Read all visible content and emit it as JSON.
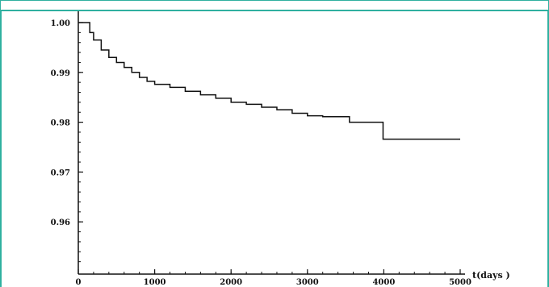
{
  "chart_data": {
    "type": "line",
    "title": "",
    "xlabel": "t(days )",
    "ylabel": "",
    "xlim": [
      0,
      5000
    ],
    "ylim": [
      0.95,
      1.0
    ],
    "x_ticks": [
      0,
      1000,
      2000,
      3000,
      4000,
      5000
    ],
    "y_ticks": [
      0.96,
      0.97,
      0.98,
      0.99,
      1.0
    ],
    "x_tick_labels": [
      "0",
      "1000",
      "2000",
      "3000",
      "4000",
      "5000"
    ],
    "y_tick_labels": [
      "0.96",
      "0.97",
      "0.98",
      "0.99",
      "1.00"
    ],
    "grid": false,
    "step": true,
    "series": [
      {
        "x": [
          0,
          100,
          150,
          200,
          300,
          400,
          500,
          600,
          700,
          800,
          900,
          1000,
          1200,
          1400,
          1600,
          1800,
          2000,
          2200,
          2400,
          2600,
          2800,
          3000,
          3200,
          3550,
          3990,
          4100,
          5000
        ],
        "values": [
          1.0,
          1.0,
          0.998,
          0.9965,
          0.9945,
          0.993,
          0.992,
          0.991,
          0.99,
          0.989,
          0.9882,
          0.9876,
          0.987,
          0.9862,
          0.9855,
          0.9848,
          0.984,
          0.9836,
          0.983,
          0.9825,
          0.9818,
          0.9813,
          0.9811,
          0.98,
          0.9766,
          0.9766,
          0.9766
        ]
      }
    ]
  }
}
